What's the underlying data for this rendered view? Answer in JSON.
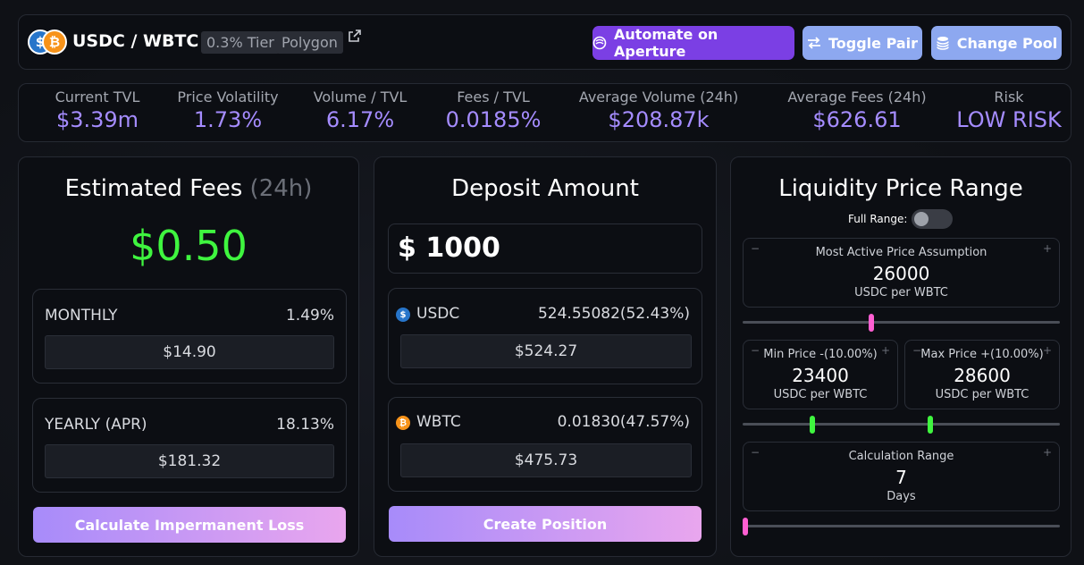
{
  "header": {
    "pair": "USDC / WBTC",
    "tier": "0.3% Tier",
    "network": "Polygon",
    "btn_automate": "Automate on Aperture",
    "btn_toggle": "Toggle Pair",
    "btn_change": "Change Pool"
  },
  "stats": [
    {
      "label": "Current TVL",
      "value": "$3.39m"
    },
    {
      "label": "Price Volatility",
      "value": "1.73%"
    },
    {
      "label": "Volume / TVL",
      "value": "6.17%"
    },
    {
      "label": "Fees / TVL",
      "value": "0.0185%"
    },
    {
      "label": "Average Volume (24h)",
      "value": "$208.87k"
    },
    {
      "label": "Average Fees (24h)",
      "value": "$626.61"
    },
    {
      "label": "Risk",
      "value": "LOW RISK"
    }
  ],
  "fees": {
    "title": "Estimated Fees",
    "title_suffix": "(24h)",
    "amount_symbol": "$",
    "amount": "0.50",
    "monthly_label": "MONTHLY",
    "monthly_pct": "1.49%",
    "monthly_value": "$14.90",
    "yearly_label": "YEARLY (APR)",
    "yearly_pct": "18.13%",
    "yearly_value": "$181.32",
    "button": "Calculate Impermanent Loss"
  },
  "deposit": {
    "title": "Deposit Amount",
    "symbol": "$",
    "amount": "1000",
    "token1_name": "USDC",
    "token1_amount": "524.55082(52.43%)",
    "token1_value": "$524.27",
    "token2_name": "WBTC",
    "token2_amount": "0.01830(47.57%)",
    "token2_value": "$475.73",
    "button": "Create Position"
  },
  "liquidity": {
    "title": "Liquidity Price Range",
    "full_range_label": "Full Range:",
    "full_range_on": false,
    "active_label": "Most Active Price Assumption",
    "active_value": "26000",
    "unit": "USDC per WBTC",
    "min_label": "Min Price -(10.00%)",
    "min_value": "23400",
    "max_label": "Max Price +(10.00%)",
    "max_value": "28600",
    "calc_label": "Calculation Range",
    "calc_value": "7",
    "calc_unit": "Days",
    "minus": "−",
    "plus": "+"
  },
  "colors": {
    "accent": "#a58cff",
    "green": "#3ff53f",
    "pink": "#ff5fd2",
    "purple_button": "#7b3fe4",
    "blue_button": "#8da8f0"
  }
}
